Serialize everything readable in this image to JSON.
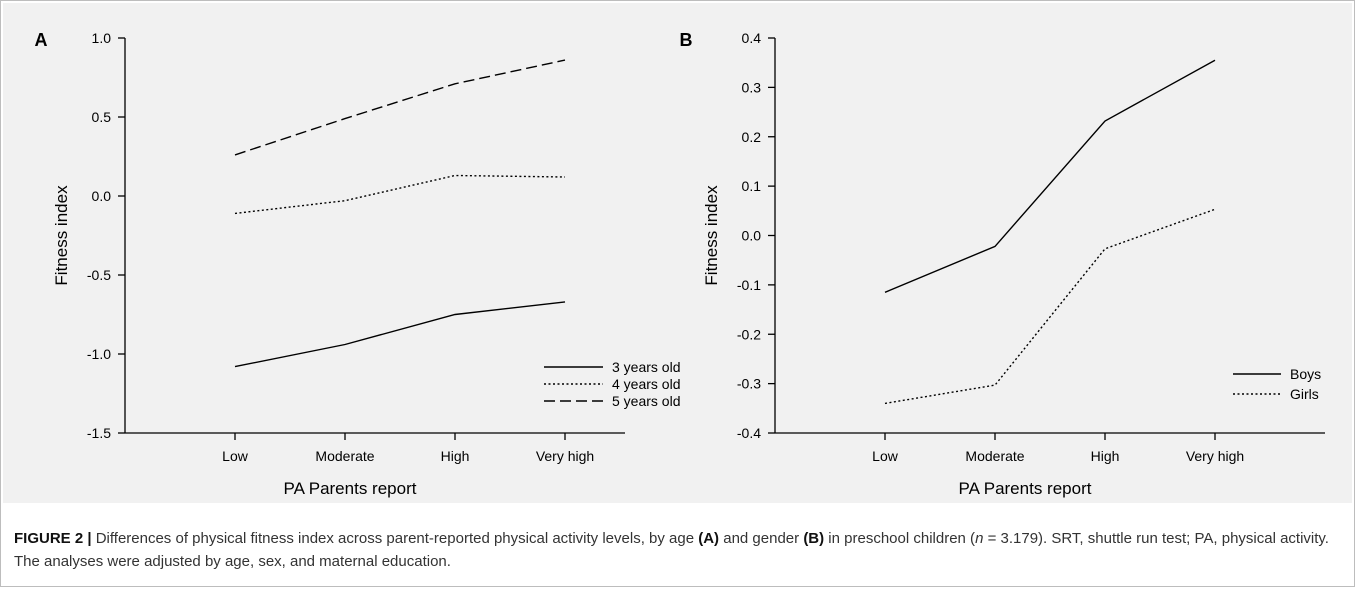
{
  "caption": {
    "figure_label": "FIGURE 2 |",
    "text_1": " Differences of physical fitness index across parent-reported physical activity levels, by age ",
    "bold_a": "(A)",
    "text_2": " and gender ",
    "bold_b": "(B)",
    "text_3": " in preschool children (",
    "italic_n": "n",
    "text_4": " = 3.179). SRT, shuttle run test; PA, physical activity. The analyses were adjusted by age, sex, and maternal education."
  },
  "chart_data": [
    {
      "type": "line",
      "panel_label": "A",
      "categories": [
        "Low",
        "Moderate",
        "High",
        "Very high"
      ],
      "xlabel": "PA Parents report",
      "ylabel": "Fitness index",
      "ylim": [
        -1.5,
        1.0
      ],
      "yticks": [
        -1.5,
        -1.0,
        -0.5,
        0.0,
        0.5,
        1.0
      ],
      "ytick_labels": [
        "-1.5",
        "-1.0",
        "-0.5",
        "0.0",
        "0.5",
        "1.0"
      ],
      "grid": false,
      "legend_position": "bottom-right",
      "series": [
        {
          "name": "3 years old",
          "values": [
            -1.08,
            -0.94,
            -0.75,
            -0.67
          ],
          "dash": "solid"
        },
        {
          "name": "4 years old",
          "values": [
            -0.11,
            -0.03,
            0.13,
            0.12
          ],
          "dash": "dotted"
        },
        {
          "name": "5 years old",
          "values": [
            0.26,
            0.49,
            0.71,
            0.86
          ],
          "dash": "dashed"
        }
      ]
    },
    {
      "type": "line",
      "panel_label": "B",
      "categories": [
        "Low",
        "Moderate",
        "High",
        "Very high"
      ],
      "xlabel": "PA Parents report",
      "ylabel": "Fitness index",
      "ylim": [
        -0.4,
        0.4
      ],
      "yticks": [
        -0.4,
        -0.3,
        -0.2,
        -0.1,
        0.0,
        0.1,
        0.2,
        0.3,
        0.4
      ],
      "ytick_labels": [
        "-0.4",
        "-0.3",
        "-0.2",
        "-0.1",
        "0.0",
        "0.1",
        "0.2",
        "0.3",
        "0.4"
      ],
      "grid": false,
      "legend_position": "bottom-right",
      "series": [
        {
          "name": "Boys",
          "values": [
            -0.115,
            -0.022,
            0.232,
            0.355
          ],
          "dash": "solid"
        },
        {
          "name": "Girls",
          "values": [
            -0.34,
            -0.303,
            -0.027,
            0.053
          ],
          "dash": "dotted"
        }
      ]
    }
  ]
}
